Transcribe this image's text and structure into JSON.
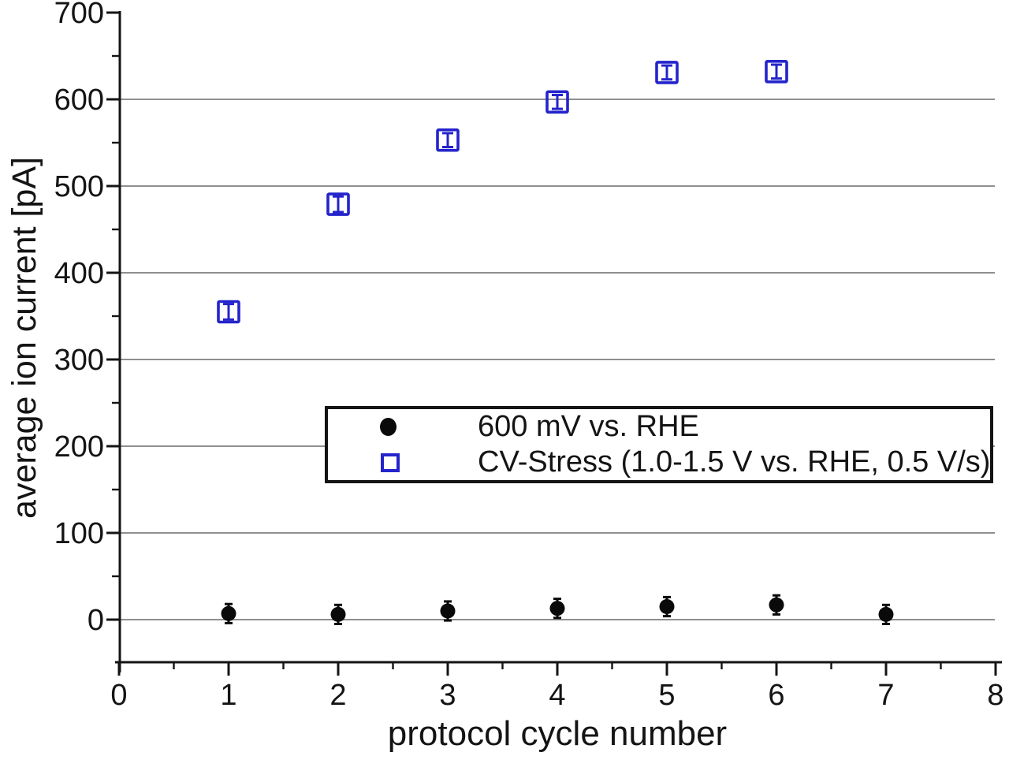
{
  "figure": {
    "background": "#ffffff"
  },
  "chart_data": {
    "type": "scatter",
    "title": "",
    "xlabel": "protocol cycle number",
    "ylabel": "average ion current [pA]",
    "xlim": [
      0,
      8
    ],
    "ylim": [
      -50,
      700
    ],
    "x_ticks": [
      0,
      1,
      2,
      3,
      4,
      5,
      6,
      7,
      8
    ],
    "x_minor_ticks": [
      0.5,
      1.5,
      2.5,
      3.5,
      4.5,
      5.5,
      6.5,
      7.5
    ],
    "y_ticks": [
      0,
      100,
      200,
      300,
      400,
      500,
      600,
      700
    ],
    "y_minor_ticks": [
      50,
      150,
      250,
      350,
      450,
      550,
      650
    ],
    "grid_y_values": [
      0,
      100,
      200,
      300,
      400,
      500,
      600
    ],
    "grid_on": true,
    "grid_color": "#8f8f8f",
    "axis_color": "#141414",
    "tick_label_color": "#141414",
    "legend_position": "inside lower-center",
    "series": [
      {
        "name": "600 mV vs. RHE",
        "marker": "filled-circle",
        "color": "#0a0a0a",
        "x": [
          1,
          2,
          3,
          4,
          5,
          6,
          7
        ],
        "y": [
          7,
          6,
          10,
          13,
          15,
          17,
          6
        ],
        "y_err": [
          11,
          11,
          11,
          11,
          11,
          11,
          11
        ]
      },
      {
        "name": "CV-Stress (1.0-1.5 V vs. RHE, 0.5 V/s)",
        "marker": "open-square",
        "color": "#2424cc",
        "x": [
          1,
          2,
          3,
          4,
          5,
          6
        ],
        "y": [
          355,
          479,
          553,
          597,
          631,
          632
        ],
        "y_err": [
          9,
          9,
          8,
          8,
          8,
          8
        ]
      }
    ]
  }
}
